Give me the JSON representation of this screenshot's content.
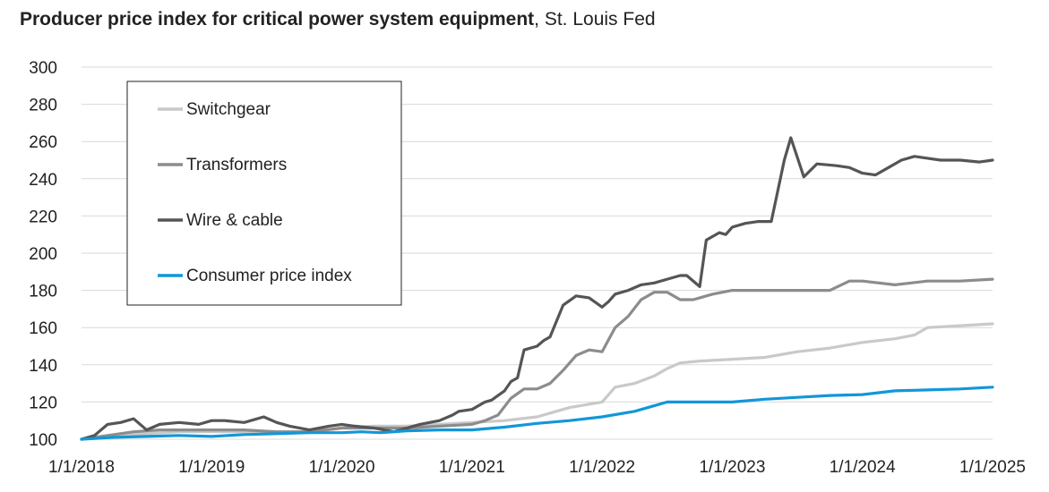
{
  "chart_data": {
    "type": "line",
    "title": "Producer price index for critical power system equipment",
    "source": ", St. Louis Fed",
    "ylim": [
      100,
      300
    ],
    "yticks": [
      "100",
      "120",
      "140",
      "160",
      "180",
      "200",
      "220",
      "240",
      "260",
      "280",
      "300"
    ],
    "xlim": [
      2018,
      2025
    ],
    "xticks": [
      {
        "value": 2018,
        "label": "1/1/2018"
      },
      {
        "value": 2019,
        "label": "1/1/2019"
      },
      {
        "value": 2020,
        "label": "1/1/2020"
      },
      {
        "value": 2021,
        "label": "1/1/2021"
      },
      {
        "value": 2022,
        "label": "1/1/2022"
      },
      {
        "value": 2023,
        "label": "1/1/2023"
      },
      {
        "value": 2024,
        "label": "1/1/2024"
      },
      {
        "value": 2025,
        "label": "1/1/2025"
      }
    ],
    "legend_position": "top-left",
    "series": [
      {
        "name": "Switchgear",
        "color": "#c9c9c9",
        "x": [
          2018,
          2018.25,
          2018.5,
          2018.75,
          2019,
          2019.25,
          2019.5,
          2019.75,
          2020,
          2020.25,
          2020.5,
          2020.75,
          2021,
          2021.25,
          2021.5,
          2021.75,
          2022,
          2022.1,
          2022.25,
          2022.4,
          2022.5,
          2022.6,
          2022.75,
          2023,
          2023.25,
          2023.5,
          2023.75,
          2024,
          2024.25,
          2024.4,
          2024.5,
          2024.75,
          2025
        ],
        "values": [
          100,
          102,
          103,
          104,
          104,
          104,
          104,
          104,
          106,
          107,
          107,
          108,
          109,
          110,
          112,
          117,
          120,
          128,
          130,
          134,
          138,
          141,
          142,
          143,
          144,
          147,
          149,
          152,
          154,
          156,
          160,
          161,
          162
        ]
      },
      {
        "name": "Transformers",
        "color": "#8c8c8c",
        "x": [
          2018,
          2018.2,
          2018.4,
          2018.6,
          2018.8,
          2019,
          2019.25,
          2019.5,
          2019.75,
          2020,
          2020.25,
          2020.5,
          2020.75,
          2021,
          2021.1,
          2021.2,
          2021.3,
          2021.4,
          2021.5,
          2021.6,
          2021.7,
          2021.8,
          2021.9,
          2022,
          2022.1,
          2022.2,
          2022.3,
          2022.4,
          2022.5,
          2022.6,
          2022.7,
          2022.75,
          2022.85,
          2023,
          2023.25,
          2023.5,
          2023.75,
          2023.9,
          2024,
          2024.25,
          2024.5,
          2024.75,
          2025
        ],
        "values": [
          100,
          102,
          104,
          105,
          105,
          105,
          105,
          104,
          104,
          106,
          106,
          106,
          107,
          108,
          110,
          113,
          122,
          127,
          127,
          130,
          137,
          145,
          148,
          147,
          160,
          166,
          175,
          179,
          179,
          175,
          175,
          176,
          178,
          180,
          180,
          180,
          180,
          185,
          185,
          183,
          185,
          185,
          186
        ]
      },
      {
        "name": "Wire & cable",
        "color": "#555555",
        "x": [
          2018,
          2018.1,
          2018.2,
          2018.3,
          2018.4,
          2018.5,
          2018.6,
          2018.75,
          2018.9,
          2019,
          2019.1,
          2019.25,
          2019.4,
          2019.5,
          2019.6,
          2019.75,
          2019.9,
          2020,
          2020.1,
          2020.25,
          2020.4,
          2020.5,
          2020.6,
          2020.75,
          2020.85,
          2020.9,
          2021,
          2021.1,
          2021.15,
          2021.25,
          2021.3,
          2021.35,
          2021.4,
          2021.5,
          2021.55,
          2021.6,
          2021.7,
          2021.8,
          2021.9,
          2022,
          2022.05,
          2022.1,
          2022.2,
          2022.3,
          2022.4,
          2022.5,
          2022.6,
          2022.65,
          2022.75,
          2022.8,
          2022.9,
          2022.95,
          2023,
          2023.1,
          2023.2,
          2023.3,
          2023.4,
          2023.45,
          2023.55,
          2023.65,
          2023.8,
          2023.9,
          2024,
          2024.1,
          2024.2,
          2024.3,
          2024.4,
          2024.5,
          2024.6,
          2024.75,
          2024.9,
          2025
        ],
        "values": [
          100,
          102,
          108,
          109,
          111,
          105,
          108,
          109,
          108,
          110,
          110,
          109,
          112,
          109,
          107,
          105,
          107,
          108,
          107,
          106,
          104,
          106,
          108,
          110,
          113,
          115,
          116,
          120,
          121,
          126,
          131,
          133,
          148,
          150,
          153,
          155,
          172,
          177,
          176,
          171,
          174,
          178,
          180,
          183,
          184,
          186,
          188,
          188,
          182,
          207,
          211,
          210,
          214,
          216,
          217,
          217,
          250,
          262,
          241,
          248,
          247,
          246,
          243,
          242,
          246,
          250,
          252,
          251,
          250,
          250,
          249,
          250
        ]
      },
      {
        "name": "Consumer price index",
        "color": "#1297d8",
        "x": [
          2018,
          2018.25,
          2018.5,
          2018.75,
          2019,
          2019.25,
          2019.5,
          2019.75,
          2020,
          2020.15,
          2020.3,
          2020.5,
          2020.75,
          2021,
          2021.25,
          2021.5,
          2021.75,
          2022,
          2022.25,
          2022.4,
          2022.5,
          2022.75,
          2023,
          2023.25,
          2023.5,
          2023.75,
          2024,
          2024.25,
          2024.5,
          2024.75,
          2025
        ],
        "values": [
          100,
          101,
          101.5,
          102,
          101.5,
          102.5,
          103,
          103.5,
          103.5,
          104,
          103.5,
          104.5,
          105,
          105,
          106.5,
          108.5,
          110,
          112,
          115,
          118,
          120,
          120,
          120,
          121.5,
          122.5,
          123.5,
          124,
          126,
          126.5,
          127,
          128
        ]
      }
    ]
  }
}
